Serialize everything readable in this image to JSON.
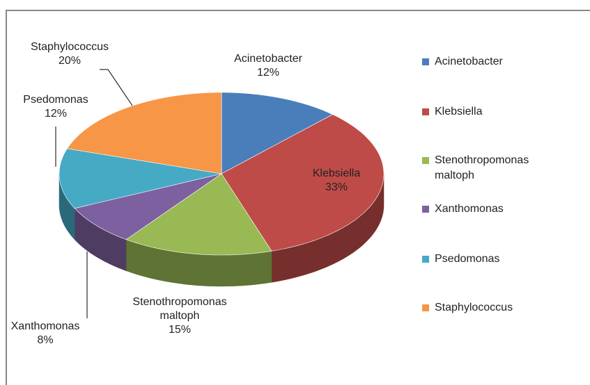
{
  "chart_data": {
    "type": "pie3d",
    "categories": [
      "Acinetobacter",
      "Klebsiella",
      "Stenothropomonas maltoph",
      "Xanthomonas",
      "Psedomonas",
      "Staphylococcus"
    ],
    "values": [
      12,
      33,
      15,
      8,
      12,
      20
    ],
    "value_labels": [
      "12%",
      "33%",
      "15%",
      "8%",
      "12%",
      "20%"
    ],
    "colors": [
      "#4a7ebb",
      "#be4b48",
      "#98b954",
      "#7d60a0",
      "#46aac5",
      "#f79646"
    ],
    "legend": "right"
  }
}
